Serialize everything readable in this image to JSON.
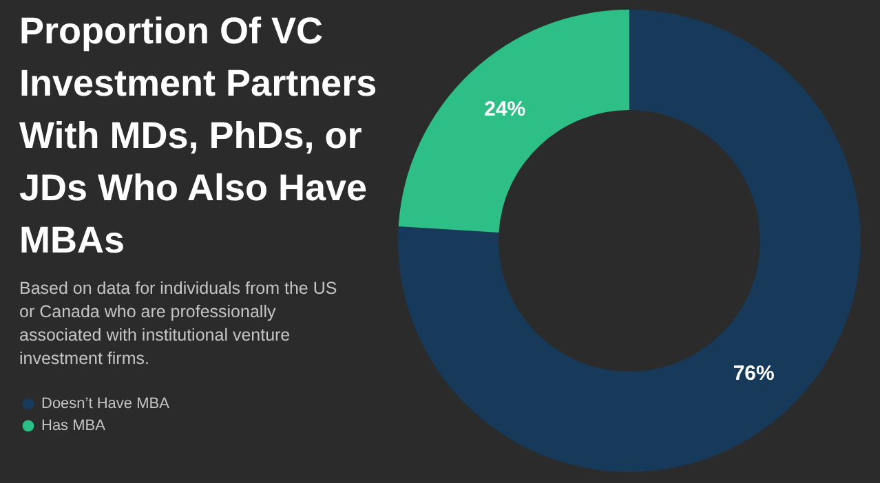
{
  "chart_data": {
    "type": "donut",
    "title": "Proportion Of VC Investment Partners With MDs, PhDs, or JDs Who Also Have MBAs",
    "subtitle": "Based on data for individuals from the US or Canada who are professionally associated with institutional venture investment firms.",
    "categories": [
      "Doesn’t Have MBA",
      "Has MBA"
    ],
    "values": [
      76,
      24
    ],
    "colors": [
      "#173a5a",
      "#2dbf85"
    ],
    "value_labels": [
      "76%",
      "24%"
    ],
    "legend": "bottom left"
  }
}
